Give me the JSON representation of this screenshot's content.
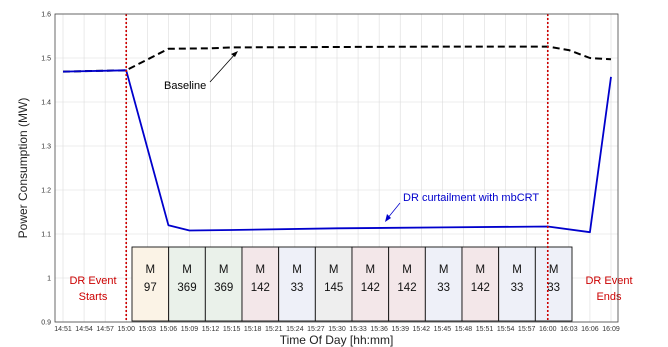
{
  "chart_data": {
    "type": "line",
    "xlabel": "Time Of Day [hh:mm]",
    "ylabel": "Power Consumption (MW)",
    "ylim": [
      0.9,
      1.6
    ],
    "yticks": [
      "0.9",
      "1",
      "1.1",
      "1.2",
      "1.3",
      "1.4",
      "1.5",
      "1.6"
    ],
    "xticks": [
      "14:51",
      "14:54",
      "14:57",
      "15:00",
      "15:03",
      "15:06",
      "15:09",
      "15:12",
      "15:15",
      "15:18",
      "15:21",
      "15:24",
      "15:27",
      "15:30",
      "15:33",
      "15:36",
      "15:39",
      "15:42",
      "15:45",
      "15:48",
      "15:51",
      "15:54",
      "15:57",
      "16:00",
      "16:03",
      "16:06",
      "16:09"
    ],
    "grid": true,
    "series": [
      {
        "name": "Baseline",
        "color": "#000000",
        "style": "dashed",
        "x": [
          "14:51",
          "15:00",
          "15:06",
          "15:12",
          "15:15",
          "15:30",
          "15:45",
          "16:00",
          "16:03",
          "16:06",
          "16:09"
        ],
        "y": [
          1.469,
          1.472,
          1.521,
          1.522,
          1.524,
          1.525,
          1.526,
          1.526,
          1.518,
          1.5,
          1.497
        ]
      },
      {
        "name": "DR curtailment with mbCRT",
        "color": "#0000cc",
        "style": "solid",
        "x": [
          "14:51",
          "15:00",
          "15:06",
          "15:09",
          "15:15",
          "15:30",
          "15:45",
          "16:00",
          "16:06",
          "16:09"
        ],
        "y": [
          1.469,
          1.472,
          1.12,
          1.108,
          1.109,
          1.113,
          1.115,
          1.117,
          1.104,
          1.457
        ]
      }
    ],
    "events": [
      {
        "label_top": "DR Event",
        "label_bottom": "Starts",
        "time": "15:00",
        "color": "#cc0000"
      },
      {
        "label_top": "DR Event",
        "label_bottom": "Ends",
        "time": "16:00",
        "color": "#cc0000"
      }
    ],
    "annotations": [
      {
        "text": "Baseline",
        "color": "#000000"
      },
      {
        "text": "DR curtailment with mbCRT",
        "color": "#0000cc"
      }
    ],
    "blocks": [
      {
        "letter": "M",
        "value": "97",
        "color": "#fbf3e6"
      },
      {
        "letter": "M",
        "value": "369",
        "color": "#eaf1ea"
      },
      {
        "letter": "M",
        "value": "369",
        "color": "#eaf1ea"
      },
      {
        "letter": "M",
        "value": "142",
        "color": "#f3e7e9"
      },
      {
        "letter": "M",
        "value": "33",
        "color": "#eef0f8"
      },
      {
        "letter": "M",
        "value": "145",
        "color": "#eeeeee"
      },
      {
        "letter": "M",
        "value": "142",
        "color": "#f3e7e9"
      },
      {
        "letter": "M",
        "value": "142",
        "color": "#f3e7e9"
      },
      {
        "letter": "M",
        "value": "33",
        "color": "#eef0f8"
      },
      {
        "letter": "M",
        "value": "142",
        "color": "#f3e7e9"
      },
      {
        "letter": "M",
        "value": "33",
        "color": "#eef0f8"
      },
      {
        "letter": "M",
        "value": "33",
        "color": "#eef0f8"
      }
    ]
  }
}
